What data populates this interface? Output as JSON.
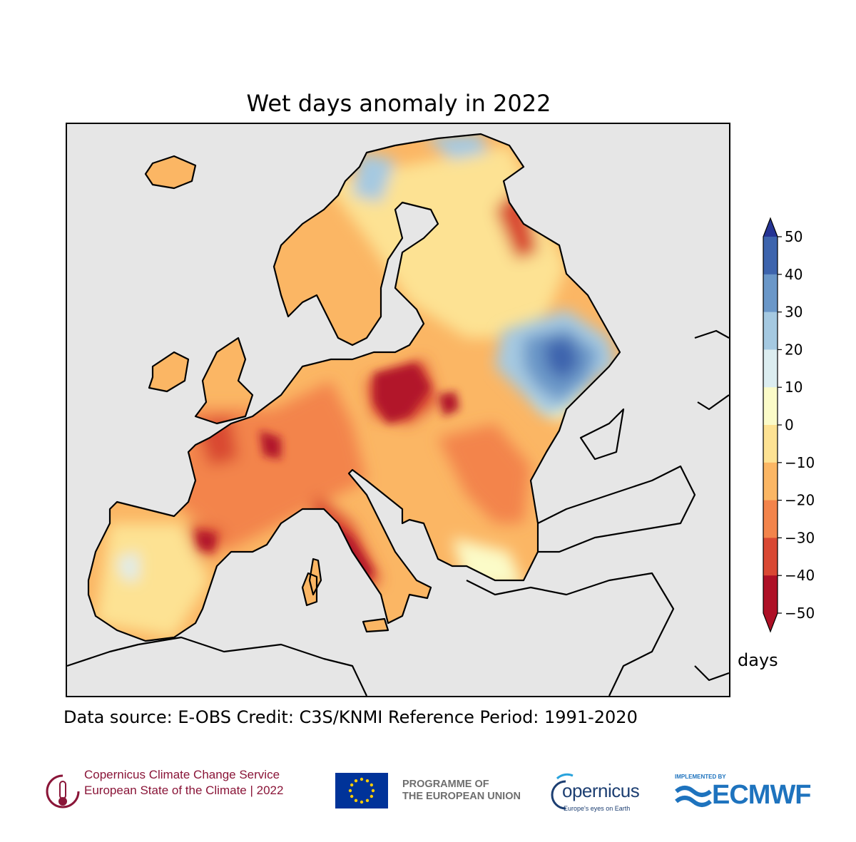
{
  "title": "Wet days anomaly in 2022",
  "units": "days",
  "source_line": "Data source: E-OBS  Credit: C3S/KNMI  Reference Period: 1991-2020",
  "colorbar": {
    "ticks": [
      "50",
      "40",
      "30",
      "20",
      "10",
      "0",
      "−10",
      "−20",
      "−30",
      "−40",
      "−50"
    ],
    "colors": [
      "#253494",
      "#3d64ad",
      "#6a97c8",
      "#a5c9e1",
      "#dcedf0",
      "#fbfbc8",
      "#fde293",
      "#fbb664",
      "#f3844b",
      "#d94833",
      "#ae1026"
    ],
    "extend": "both"
  },
  "map_colors": {
    "sea": "#e6e6e6",
    "very_dry": "#b2182b",
    "dry": "#d94833",
    "moderate_dry": "#f3844b",
    "mild_dry": "#fbb664",
    "slight_dry": "#fde293",
    "neutral": "#fbfbc8",
    "slight_wet": "#dcedf0",
    "wet": "#a5c9e1",
    "wetter": "#6a97c8",
    "wettest": "#3d64ad"
  },
  "footer": {
    "c3s_line1": "Copernicus Climate Change Service",
    "c3s_line2": "European State of the Climate | 2022",
    "eu_line1": "PROGRAMME OF",
    "eu_line2": "THE EUROPEAN UNION",
    "copernicus_word": "opernicus",
    "copernicus_tagline": "Europe's eyes on Earth",
    "ecmwf_top": "IMPLEMENTED BY",
    "ecmwf_word": "ECMWF"
  }
}
